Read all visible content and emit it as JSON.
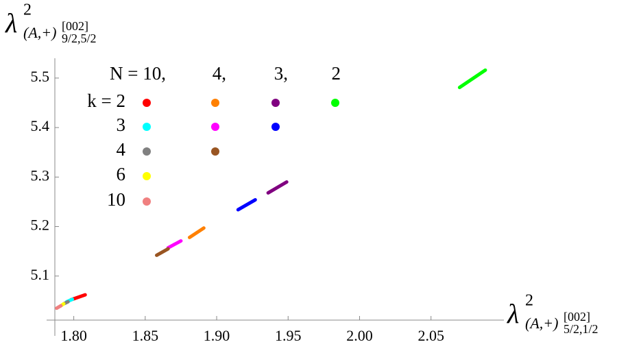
{
  "chart_data": {
    "type": "line",
    "x_label": {
      "base": "λ",
      "sup": "2",
      "sub": "(A,+)",
      "subsup": "[002]",
      "subsub": "5/2,1/2"
    },
    "y_label": {
      "base": "λ",
      "sup": "2",
      "sub": "(A,+)",
      "subsup": "[002]",
      "subsub": "9/2,5/2"
    },
    "xlim": [
      1.781,
      2.101
    ],
    "ylim": [
      5.011,
      5.54
    ],
    "xticks": [
      {
        "value": 1.8,
        "label": "1.80"
      },
      {
        "value": 1.85,
        "label": "1.85"
      },
      {
        "value": 1.9,
        "label": "1.90"
      },
      {
        "value": 1.95,
        "label": "1.95"
      },
      {
        "value": 2.0,
        "label": "2.00"
      },
      {
        "value": 2.05,
        "label": "2.05"
      }
    ],
    "yticks": [
      5.1,
      5.2,
      5.3,
      5.4,
      5.5
    ],
    "row_labels": [
      "k = 2",
      "3",
      "4",
      "6",
      "10"
    ],
    "groups": [
      {
        "label": "N = 10,",
        "series": [
          {
            "color": "#ff0000",
            "x": [
              1.798,
              1.808
            ],
            "values": [
              5.052,
              5.062
            ]
          },
          {
            "color": "#00ffff",
            "x": [
              1.795,
              1.799
            ],
            "values": [
              5.048,
              5.053
            ]
          },
          {
            "color": "#808080",
            "x": [
              1.793,
              1.796
            ],
            "values": [
              5.044,
              5.048
            ]
          },
          {
            "color": "#ffff00",
            "x": [
              1.791,
              1.793
            ],
            "values": [
              5.04,
              5.044
            ]
          },
          {
            "color": "#f08080",
            "x": [
              1.788,
              1.791
            ],
            "values": [
              5.035,
              5.04
            ]
          }
        ]
      },
      {
        "label": "4,",
        "series": [
          {
            "color": "#ff8000",
            "x": [
              1.881,
              1.891
            ],
            "values": [
              5.178,
              5.197
            ]
          },
          {
            "color": "#ff00ff",
            "x": [
              1.866,
              1.875
            ],
            "values": [
              5.157,
              5.171
            ]
          },
          {
            "color": "#995522",
            "x": [
              1.858,
              1.866
            ],
            "values": [
              5.142,
              5.155
            ]
          }
        ]
      },
      {
        "label": "3,",
        "series": [
          {
            "color": "#800080",
            "x": [
              1.936,
              1.949
            ],
            "values": [
              5.268,
              5.29
            ]
          },
          {
            "color": "#0000ff",
            "x": [
              1.915,
              1.927
            ],
            "values": [
              5.234,
              5.254
            ]
          }
        ]
      },
      {
        "label": "2",
        "series": [
          {
            "color": "#00ff00",
            "x": [
              2.07,
              2.088
            ],
            "values": [
              5.481,
              5.516
            ]
          }
        ]
      }
    ]
  }
}
